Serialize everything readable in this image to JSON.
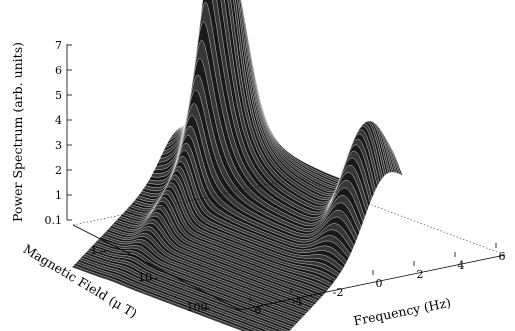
{
  "chart_data": {
    "type": "surface",
    "title": "",
    "xlabel": "Frequency (Hz)",
    "ylabel": "Magnetic Field (μ T)",
    "zlabel": "Power Spectrum (arb. units)",
    "x_ticks": [
      "-6",
      "-4",
      "-2",
      "0",
      "2",
      "4",
      "6"
    ],
    "y_ticks": [
      "1",
      "10",
      "100"
    ],
    "z_ticks": [
      "0.1",
      "1",
      "2",
      "3",
      "4",
      "5",
      "6",
      "7"
    ],
    "xlim": [
      -6,
      6
    ],
    "zlim": [
      0.1,
      7
    ],
    "y_scale": "log",
    "surface_color": "#000000",
    "peaks": [
      {
        "x": -3.6,
        "field": 0.35,
        "z": 7.2
      },
      {
        "x": -2.8,
        "field": 0.3,
        "z": 5.4
      },
      {
        "x": -3.6,
        "field": 3,
        "z": 1.7
      },
      {
        "x": 5.0,
        "field": 0.35,
        "z": 3.9
      }
    ]
  }
}
